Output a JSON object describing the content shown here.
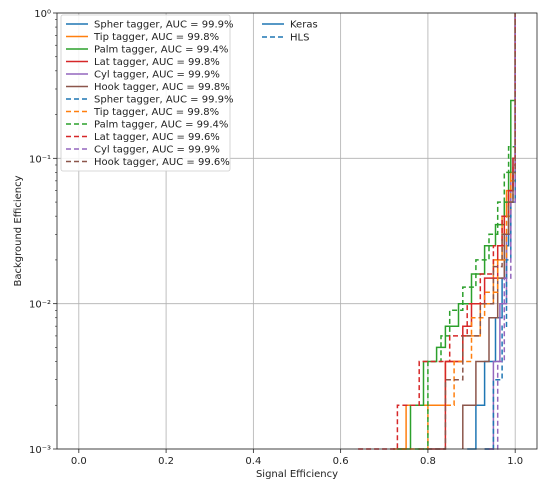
{
  "chart_data": {
    "type": "line",
    "title": "",
    "xlabel": "Signal Efficiency",
    "ylabel": "Background Efficiency",
    "xlim": [
      -0.05,
      1.05
    ],
    "ylim": [
      0.001,
      1
    ],
    "yscale": "log",
    "grid": true,
    "x_ticks": [
      0.0,
      0.2,
      0.4,
      0.6,
      0.8,
      1.0
    ],
    "x_tick_labels": [
      "0.0",
      "0.2",
      "0.4",
      "0.6",
      "0.8",
      "1.0"
    ],
    "y_ticks": [
      0.001,
      0.01,
      0.1,
      1
    ],
    "y_tick_labels": [
      "10⁻³",
      "10⁻²",
      "10⁻¹",
      "10⁰"
    ],
    "legend_placement": "top-left",
    "style_legend": {
      "placement": "top-center",
      "entries": [
        {
          "label": "Keras",
          "linestyle": "solid"
        },
        {
          "label": "HLS",
          "linestyle": "dashed"
        }
      ]
    },
    "series": [
      {
        "name": "Spher tagger, AUC = 99.9%",
        "color": "#1f77b4",
        "linestyle": "solid",
        "x": [
          0.89,
          0.91,
          0.93,
          0.955,
          0.97,
          0.98,
          0.985,
          0.99,
          0.995,
          1.0
        ],
        "y": [
          0.001,
          0.002,
          0.004,
          0.008,
          0.015,
          0.025,
          0.04,
          0.06,
          0.1,
          1
        ]
      },
      {
        "name": "Tip tagger, AUC = 99.8%",
        "color": "#ff7f0e",
        "linestyle": "solid",
        "x": [
          0.72,
          0.75,
          0.84,
          0.88,
          0.92,
          0.95,
          0.97,
          0.98,
          0.99,
          1.0
        ],
        "y": [
          0.001,
          0.002,
          0.004,
          0.006,
          0.01,
          0.02,
          0.04,
          0.06,
          0.08,
          1
        ]
      },
      {
        "name": "Palm tagger, AUC = 99.4%",
        "color": "#2ca02c",
        "linestyle": "solid",
        "x": [
          0.73,
          0.76,
          0.79,
          0.82,
          0.84,
          0.87,
          0.9,
          0.93,
          0.955,
          0.975,
          0.985,
          0.99,
          1.0
        ],
        "y": [
          0.001,
          0.002,
          0.004,
          0.005,
          0.007,
          0.01,
          0.016,
          0.025,
          0.035,
          0.05,
          0.08,
          0.25,
          1
        ]
      },
      {
        "name": "Lat tagger, AUC = 99.8%",
        "color": "#d62728",
        "linestyle": "solid",
        "x": [
          0.8,
          0.84,
          0.88,
          0.9,
          0.93,
          0.96,
          0.975,
          0.985,
          0.995,
          1.0
        ],
        "y": [
          0.001,
          0.004,
          0.007,
          0.01,
          0.015,
          0.025,
          0.04,
          0.06,
          0.1,
          1
        ]
      },
      {
        "name": "Cyl tagger, AUC = 99.9%",
        "color": "#9467bd",
        "linestyle": "solid",
        "x": [
          0.93,
          0.95,
          0.965,
          0.98,
          0.99,
          1.0
        ],
        "y": [
          0.001,
          0.004,
          0.01,
          0.03,
          0.07,
          1
        ]
      },
      {
        "name": "Hook tagger, AUC = 99.8%",
        "color": "#8c564b",
        "linestyle": "solid",
        "x": [
          0.88,
          0.91,
          0.94,
          0.96,
          0.975,
          0.985,
          0.995,
          1.0
        ],
        "y": [
          0.002,
          0.004,
          0.008,
          0.015,
          0.03,
          0.05,
          0.08,
          1
        ]
      },
      {
        "name": "Spher tagger, AUC = 99.9%",
        "color": "#1f77b4",
        "linestyle": "dashed",
        "x": [
          0.93,
          0.95,
          0.97,
          0.98,
          0.99,
          1.0
        ],
        "y": [
          0.001,
          0.003,
          0.007,
          0.02,
          0.05,
          1
        ]
      },
      {
        "name": "Tip tagger, AUC = 99.8%",
        "color": "#ff7f0e",
        "linestyle": "dashed",
        "x": [
          0.74,
          0.8,
          0.86,
          0.9,
          0.93,
          0.96,
          0.98,
          0.99,
          1.0
        ],
        "y": [
          0.001,
          0.002,
          0.004,
          0.008,
          0.012,
          0.02,
          0.04,
          0.07,
          1
        ]
      },
      {
        "name": "Palm tagger, AUC = 99.4%",
        "color": "#2ca02c",
        "linestyle": "dashed",
        "x": [
          0.77,
          0.8,
          0.83,
          0.85,
          0.88,
          0.91,
          0.94,
          0.96,
          0.975,
          0.985,
          1.0
        ],
        "y": [
          0.001,
          0.004,
          0.006,
          0.009,
          0.013,
          0.02,
          0.03,
          0.05,
          0.08,
          0.12,
          1
        ]
      },
      {
        "name": "Lat tagger, AUC = 99.6%",
        "color": "#d62728",
        "linestyle": "dashed",
        "x": [
          0.64,
          0.73,
          0.78,
          0.85,
          0.89,
          0.92,
          0.95,
          0.97,
          0.985,
          0.995,
          1.0
        ],
        "y": [
          0.001,
          0.002,
          0.004,
          0.006,
          0.01,
          0.016,
          0.025,
          0.04,
          0.06,
          0.09,
          1
        ]
      },
      {
        "name": "Cyl tagger, AUC = 99.9%",
        "color": "#9467bd",
        "linestyle": "dashed",
        "x": [
          0.94,
          0.96,
          0.975,
          0.99,
          1.0
        ],
        "y": [
          0.001,
          0.004,
          0.015,
          0.05,
          1
        ]
      },
      {
        "name": "Hook tagger, AUC = 99.6%",
        "color": "#8c564b",
        "linestyle": "dashed",
        "x": [
          0.78,
          0.84,
          0.88,
          0.92,
          0.95,
          0.97,
          0.985,
          0.995,
          1.0
        ],
        "y": [
          0.001,
          0.003,
          0.006,
          0.01,
          0.018,
          0.03,
          0.05,
          0.08,
          1
        ]
      }
    ]
  }
}
